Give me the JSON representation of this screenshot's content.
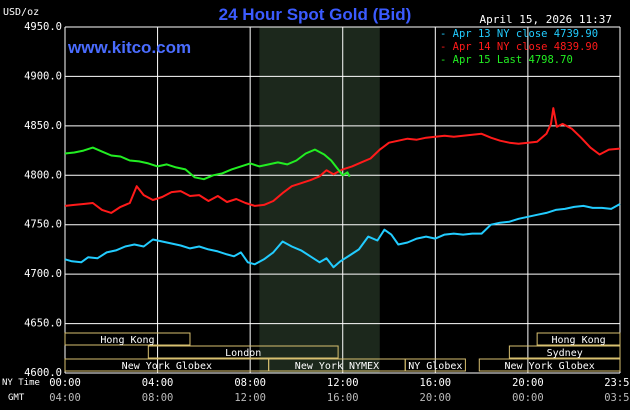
{
  "header": {
    "title": "24 Hour Spot Gold (Bid)",
    "date_time": "April 15, 2026 11:37",
    "units": "USD/oz",
    "website": "www.kitco.com"
  },
  "footer": {
    "nytime_label": "NY Time",
    "gmt_label": "GMT"
  },
  "colors": {
    "background": "#000000",
    "grid": "#ffffff",
    "nymex_shade": "#1c281c",
    "market_box": "#d8c070",
    "series_apr13": "#22ccff",
    "series_apr14": "#ff1a1a",
    "series_apr15": "#22ee22"
  },
  "legend": {
    "items": [
      {
        "text": "Apr 13 NY close 4739.90",
        "color": "#22ccff"
      },
      {
        "text": "Apr 14 NY close 4839.90",
        "color": "#ff1a1a"
      },
      {
        "text": "Apr 15 Last 4798.70",
        "color": "#22ee22"
      }
    ]
  },
  "sessions": [
    {
      "label": "Hong Kong",
      "start_h": 0.0,
      "end_h": 5.4,
      "row": 0
    },
    {
      "label": "London",
      "start_h": 3.6,
      "end_h": 11.8,
      "row": 1
    },
    {
      "label": "New York Globex",
      "start_h": 0.0,
      "end_h": 8.8,
      "row": 2
    },
    {
      "label": "New York NYMEX",
      "start_h": 8.8,
      "end_h": 14.7,
      "row": 2
    },
    {
      "label": "NY Globex",
      "start_h": 14.7,
      "end_h": 17.3,
      "row": 2
    },
    {
      "label": "Hong Kong",
      "start_h": 20.4,
      "end_h": 23.98,
      "row": 0
    },
    {
      "label": "Sydney",
      "start_h": 19.2,
      "end_h": 23.98,
      "row": 1
    },
    {
      "label": "New York Globex",
      "start_h": 17.9,
      "end_h": 23.98,
      "row": 2
    }
  ],
  "chart_data": {
    "type": "line",
    "title": "24 Hour Spot Gold (Bid)",
    "ylabel": "USD/oz",
    "ylim": [
      4600,
      4950
    ],
    "yticks": [
      "4950.0",
      "4900.0",
      "4850.0",
      "4800.0",
      "4750.0",
      "4700.0",
      "4650.0",
      "4600.0"
    ],
    "xlim": [
      0,
      23.98
    ],
    "xticks_ny": [
      "00:00",
      "04:00",
      "08:00",
      "12:00",
      "16:00",
      "20:00",
      "23:59"
    ],
    "xticks_gmt": [
      "04:00",
      "08:00",
      "12:00",
      "16:00",
      "20:00",
      "00:00",
      "03:59"
    ],
    "shaded_interval": [
      8.4,
      13.6
    ],
    "grid": true,
    "legend_position": "top-right",
    "series": [
      {
        "name": "Apr 13 NY close 4739.90",
        "color": "#22ccff",
        "points": [
          [
            0,
            4715
          ],
          [
            0.3,
            4713
          ],
          [
            0.7,
            4712
          ],
          [
            1.0,
            4717
          ],
          [
            1.4,
            4716
          ],
          [
            1.8,
            4722
          ],
          [
            2.2,
            4724
          ],
          [
            2.6,
            4728
          ],
          [
            3.0,
            4730
          ],
          [
            3.4,
            4728
          ],
          [
            3.8,
            4735
          ],
          [
            4.2,
            4733
          ],
          [
            4.6,
            4731
          ],
          [
            5.0,
            4729
          ],
          [
            5.4,
            4726
          ],
          [
            5.8,
            4728
          ],
          [
            6.2,
            4725
          ],
          [
            6.6,
            4723
          ],
          [
            7.0,
            4720
          ],
          [
            7.3,
            4718
          ],
          [
            7.6,
            4722
          ],
          [
            7.9,
            4712
          ],
          [
            8.2,
            4710
          ],
          [
            8.6,
            4715
          ],
          [
            9.0,
            4722
          ],
          [
            9.4,
            4733
          ],
          [
            9.8,
            4728
          ],
          [
            10.2,
            4724
          ],
          [
            10.6,
            4718
          ],
          [
            11.0,
            4712
          ],
          [
            11.3,
            4716
          ],
          [
            11.6,
            4707
          ],
          [
            11.9,
            4713
          ],
          [
            12.3,
            4719
          ],
          [
            12.7,
            4725
          ],
          [
            13.1,
            4738
          ],
          [
            13.5,
            4734
          ],
          [
            13.8,
            4745
          ],
          [
            14.1,
            4740
          ],
          [
            14.4,
            4730
          ],
          [
            14.8,
            4732
          ],
          [
            15.2,
            4736
          ],
          [
            15.6,
            4738
          ],
          [
            16.0,
            4736
          ],
          [
            16.4,
            4740
          ],
          [
            16.8,
            4741
          ],
          [
            17.2,
            4740
          ],
          [
            17.6,
            4741
          ],
          [
            18.0,
            4741
          ],
          [
            18.4,
            4750
          ],
          [
            18.8,
            4752
          ],
          [
            19.2,
            4753
          ],
          [
            19.6,
            4756
          ],
          [
            20.0,
            4758
          ],
          [
            20.4,
            4760
          ],
          [
            20.8,
            4762
          ],
          [
            21.2,
            4765
          ],
          [
            21.6,
            4766
          ],
          [
            22.0,
            4768
          ],
          [
            22.4,
            4769
          ],
          [
            22.8,
            4767
          ],
          [
            23.2,
            4767
          ],
          [
            23.6,
            4766
          ],
          [
            23.98,
            4771
          ]
        ]
      },
      {
        "name": "Apr 14 NY close 4839.90",
        "color": "#ff1a1a",
        "points": [
          [
            0,
            4769
          ],
          [
            0.4,
            4770
          ],
          [
            0.8,
            4771
          ],
          [
            1.2,
            4772
          ],
          [
            1.6,
            4765
          ],
          [
            2.0,
            4762
          ],
          [
            2.4,
            4768
          ],
          [
            2.8,
            4772
          ],
          [
            3.1,
            4789
          ],
          [
            3.4,
            4780
          ],
          [
            3.8,
            4775
          ],
          [
            4.2,
            4778
          ],
          [
            4.6,
            4783
          ],
          [
            5.0,
            4784
          ],
          [
            5.4,
            4779
          ],
          [
            5.8,
            4780
          ],
          [
            6.2,
            4774
          ],
          [
            6.6,
            4779
          ],
          [
            7.0,
            4773
          ],
          [
            7.4,
            4776
          ],
          [
            7.8,
            4772
          ],
          [
            8.2,
            4769
          ],
          [
            8.6,
            4770
          ],
          [
            9.0,
            4774
          ],
          [
            9.4,
            4782
          ],
          [
            9.8,
            4789
          ],
          [
            10.2,
            4792
          ],
          [
            10.6,
            4795
          ],
          [
            11.0,
            4799
          ],
          [
            11.3,
            4805
          ],
          [
            11.6,
            4801
          ],
          [
            12.0,
            4806
          ],
          [
            12.4,
            4809
          ],
          [
            12.8,
            4813
          ],
          [
            13.2,
            4817
          ],
          [
            13.6,
            4826
          ],
          [
            14.0,
            4833
          ],
          [
            14.4,
            4835
          ],
          [
            14.8,
            4837
          ],
          [
            15.2,
            4836
          ],
          [
            15.6,
            4838
          ],
          [
            16.0,
            4839
          ],
          [
            16.4,
            4840
          ],
          [
            16.8,
            4839
          ],
          [
            17.2,
            4840
          ],
          [
            17.6,
            4841
          ],
          [
            18.0,
            4842
          ],
          [
            18.4,
            4838
          ],
          [
            18.8,
            4835
          ],
          [
            19.2,
            4833
          ],
          [
            19.6,
            4832
          ],
          [
            20.0,
            4833
          ],
          [
            20.4,
            4834
          ],
          [
            20.8,
            4842
          ],
          [
            21.0,
            4852
          ],
          [
            21.1,
            4868
          ],
          [
            21.25,
            4849
          ],
          [
            21.5,
            4852
          ],
          [
            21.9,
            4847
          ],
          [
            22.3,
            4838
          ],
          [
            22.7,
            4828
          ],
          [
            23.1,
            4821
          ],
          [
            23.5,
            4826
          ],
          [
            23.98,
            4827
          ]
        ]
      },
      {
        "name": "Apr 15 Last 4798.70",
        "color": "#22ee22",
        "points": [
          [
            0,
            4822
          ],
          [
            0.4,
            4823
          ],
          [
            0.8,
            4825
          ],
          [
            1.2,
            4828
          ],
          [
            1.6,
            4824
          ],
          [
            2.0,
            4820
          ],
          [
            2.4,
            4819
          ],
          [
            2.8,
            4815
          ],
          [
            3.2,
            4814
          ],
          [
            3.6,
            4812
          ],
          [
            4.0,
            4809
          ],
          [
            4.4,
            4811
          ],
          [
            4.8,
            4808
          ],
          [
            5.2,
            4806
          ],
          [
            5.6,
            4798
          ],
          [
            6.0,
            4796
          ],
          [
            6.4,
            4800
          ],
          [
            6.8,
            4802
          ],
          [
            7.2,
            4806
          ],
          [
            7.6,
            4809
          ],
          [
            8.0,
            4812
          ],
          [
            8.4,
            4809
          ],
          [
            8.8,
            4811
          ],
          [
            9.2,
            4813
          ],
          [
            9.6,
            4811
          ],
          [
            10.0,
            4815
          ],
          [
            10.4,
            4822
          ],
          [
            10.8,
            4826
          ],
          [
            11.2,
            4821
          ],
          [
            11.5,
            4815
          ],
          [
            11.8,
            4806
          ],
          [
            12.0,
            4800
          ],
          [
            12.2,
            4803
          ],
          [
            12.3,
            4798.7
          ]
        ]
      }
    ]
  }
}
